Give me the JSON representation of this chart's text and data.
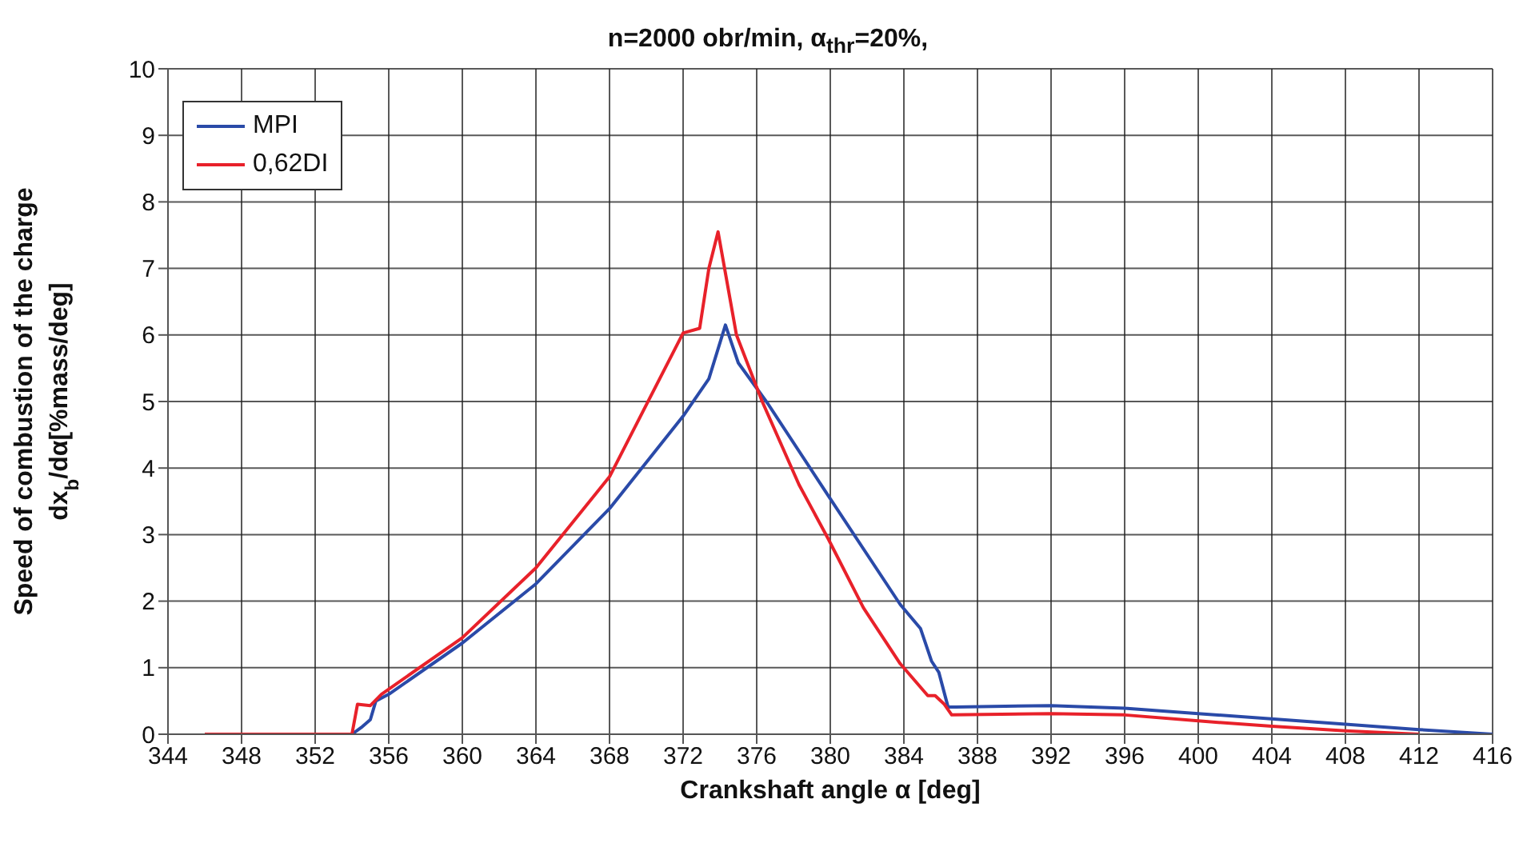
{
  "chart_data": {
    "type": "line",
    "title": "n=2000 obr/min, α$_{thr}$=20%,",
    "xlabel": "Crankshaft angle α [deg]",
    "ylabel": "Speed of combustion of the charge\ndx$_{b}$/dα[%mass/deg]",
    "xlim": [
      344,
      416
    ],
    "xticks": [
      344,
      348,
      352,
      356,
      360,
      364,
      368,
      372,
      376,
      380,
      384,
      388,
      392,
      396,
      400,
      404,
      408,
      412,
      416
    ],
    "ylim": [
      0,
      10
    ],
    "yticks": [
      0,
      1,
      2,
      3,
      4,
      5,
      6,
      7,
      8,
      9,
      10
    ],
    "grid": true,
    "legend": "top left",
    "marker": "none",
    "line_style": "solid",
    "series": [
      {
        "name": "MPI",
        "color": "#2a4aa8",
        "x": [
          346,
          354,
          354.5,
          355,
          355.3,
          356,
          360,
          364,
          368,
          372,
          373.4,
          374.3,
          375,
          376.6,
          379.9,
          383.8,
          384.9,
          385.5,
          385.9,
          386.4,
          386.8,
          392,
          396,
          400,
          408,
          412,
          416
        ],
        "values": [
          0,
          0,
          0.1,
          0.22,
          0.5,
          0.6,
          1.37,
          2.26,
          3.39,
          4.78,
          5.34,
          6.15,
          5.58,
          4.97,
          3.58,
          1.95,
          1.59,
          1.1,
          0.93,
          0.41,
          0.41,
          0.43,
          0.39,
          0.31,
          0.15,
          0.07,
          0
        ]
      },
      {
        "name": "0,62DI",
        "color": "#e8212a",
        "x": [
          346,
          354,
          354.3,
          355,
          355.6,
          360,
          364,
          368,
          372,
          372.9,
          373.4,
          373.9,
          374.9,
          376.3,
          378.3,
          379.9,
          381.8,
          383.8,
          385.3,
          385.7,
          386.2,
          386.6,
          392,
          396,
          400,
          404,
          408,
          412
        ],
        "values": [
          0,
          0,
          0.45,
          0.43,
          0.6,
          1.45,
          2.5,
          3.87,
          6.03,
          6.1,
          7.0,
          7.55,
          6.0,
          5.0,
          3.75,
          2.93,
          1.9,
          1.06,
          0.58,
          0.58,
          0.45,
          0.29,
          0.31,
          0.29,
          0.2,
          0.12,
          0.05,
          0
        ]
      }
    ]
  }
}
